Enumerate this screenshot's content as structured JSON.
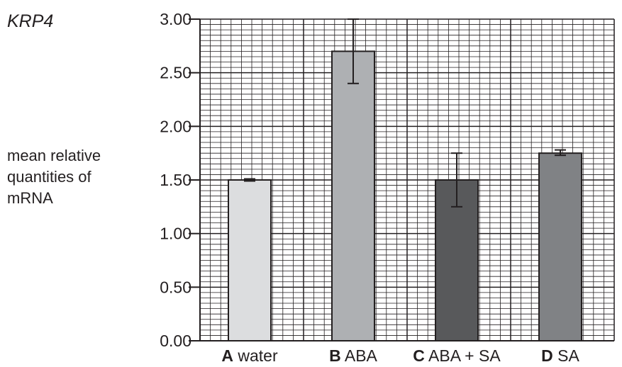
{
  "chart_data": {
    "type": "bar",
    "title": "KRP4",
    "ylabel_lines": [
      "mean relative",
      "quantities of",
      "mRNA"
    ],
    "ylim": [
      0,
      3.0
    ],
    "yticks": [
      "0.00",
      "0.50",
      "1.00",
      "1.50",
      "2.00",
      "2.50",
      "3.00"
    ],
    "ytick_values": [
      0,
      0.5,
      1.0,
      1.5,
      2.0,
      2.5,
      3.0
    ],
    "grid": true,
    "categories": [
      {
        "letter": "A",
        "name": "water"
      },
      {
        "letter": "B",
        "name": "ABA"
      },
      {
        "letter": "C",
        "name": "ABA + SA"
      },
      {
        "letter": "D",
        "name": "SA"
      }
    ],
    "values": [
      1.5,
      2.7,
      1.5,
      1.75
    ],
    "error_low": [
      1.49,
      2.4,
      1.25,
      1.73
    ],
    "error_high": [
      1.51,
      3.0,
      1.75,
      1.78
    ],
    "colors": [
      "#dcdddf",
      "#aeb0b3",
      "#58595b",
      "#808285"
    ]
  }
}
